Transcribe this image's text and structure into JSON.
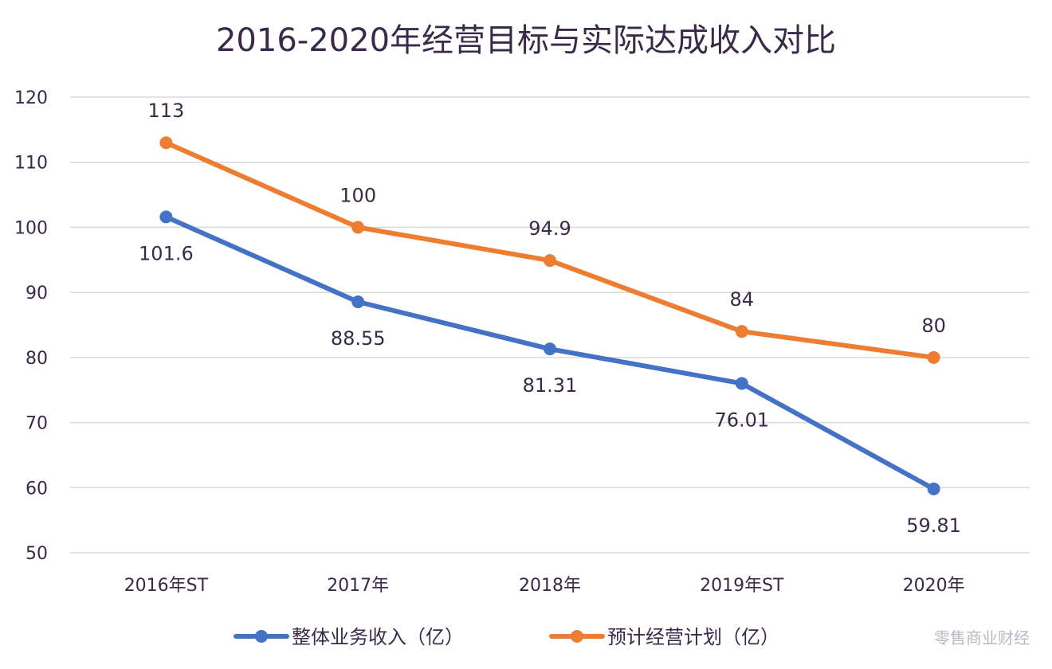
{
  "chart_data": {
    "type": "line",
    "title": "2016-2020年经营目标与实际达成收入对比",
    "categories": [
      "2016年ST",
      "2017年",
      "2018年",
      "2019年ST",
      "2020年"
    ],
    "series": [
      {
        "name": "整体业务收入（亿）",
        "color": "#4472C4",
        "values": [
          101.6,
          88.55,
          81.31,
          76.01,
          59.81
        ],
        "labels": [
          "101.6",
          "88.55",
          "81.31",
          "76.01",
          "59.81"
        ]
      },
      {
        "name": "预计经营计划（亿）",
        "color": "#ED7D31",
        "values": [
          113,
          100,
          94.9,
          84,
          80
        ],
        "labels": [
          "113",
          "100",
          "94.9",
          "84",
          "80"
        ]
      }
    ],
    "ylim": [
      50,
      120
    ],
    "yticks": [
      "50",
      "60",
      "70",
      "80",
      "90",
      "100",
      "110",
      "120"
    ],
    "grid": true,
    "legend": "bottom"
  },
  "watermark": "零售商业财经"
}
